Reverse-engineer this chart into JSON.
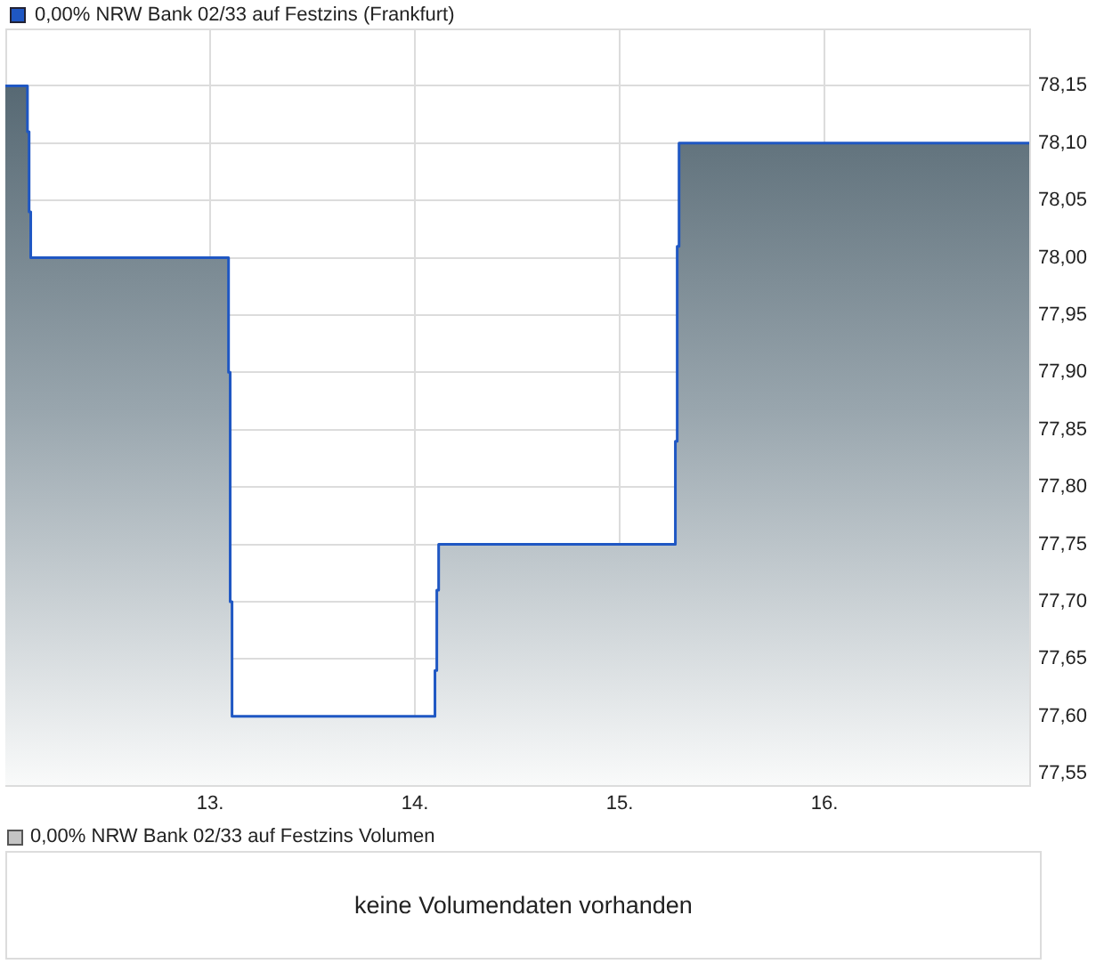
{
  "chart_data": [
    {
      "type": "area",
      "series": [
        {
          "name": "0,00% NRW Bank 02/33 auf Festzins (Frankfurt)",
          "color": "#1f57c3",
          "x": [
            12.0,
            12.108,
            12.108,
            12.116,
            12.116,
            12.124,
            12.124,
            13.09,
            13.09,
            13.098,
            13.098,
            13.107,
            13.107,
            14.098,
            14.098,
            14.107,
            14.107,
            14.116,
            14.116,
            15.272,
            15.272,
            15.281,
            15.281,
            15.29,
            15.29,
            17.0
          ],
          "values": [
            78.15,
            78.15,
            78.11,
            78.11,
            78.04,
            78.04,
            78.0,
            78.0,
            77.9,
            77.9,
            77.7,
            77.7,
            77.6,
            77.6,
            77.64,
            77.64,
            77.71,
            77.71,
            77.75,
            77.75,
            77.84,
            77.84,
            78.01,
            78.01,
            78.1,
            78.1
          ]
        }
      ],
      "xlim": [
        12,
        17
      ],
      "xticks": [
        {
          "value": 13,
          "label": "13."
        },
        {
          "value": 14,
          "label": "14."
        },
        {
          "value": 15,
          "label": "15."
        },
        {
          "value": 16,
          "label": "16."
        }
      ],
      "ylim": [
        77.54,
        78.2
      ],
      "yticks": [
        {
          "value": 77.55,
          "label": "77,55"
        },
        {
          "value": 77.6,
          "label": "77,60"
        },
        {
          "value": 77.65,
          "label": "77,65"
        },
        {
          "value": 77.7,
          "label": "77,70"
        },
        {
          "value": 77.75,
          "label": "77,75"
        },
        {
          "value": 77.8,
          "label": "77,80"
        },
        {
          "value": 77.85,
          "label": "77,85"
        },
        {
          "value": 77.9,
          "label": "77,90"
        },
        {
          "value": 77.95,
          "label": "77,95"
        },
        {
          "value": 78.0,
          "label": "78,00"
        },
        {
          "value": 78.05,
          "label": "78,05"
        },
        {
          "value": 78.1,
          "label": "78,10"
        },
        {
          "value": 78.15,
          "label": "78,15"
        }
      ],
      "grid": true,
      "legend": "top left",
      "marker": "none"
    },
    {
      "type": "other",
      "title": "0,00% NRW Bank 02/33 auf Festzins Volumen",
      "annotations": [
        "keine Volumendaten vorhanden"
      ]
    }
  ]
}
